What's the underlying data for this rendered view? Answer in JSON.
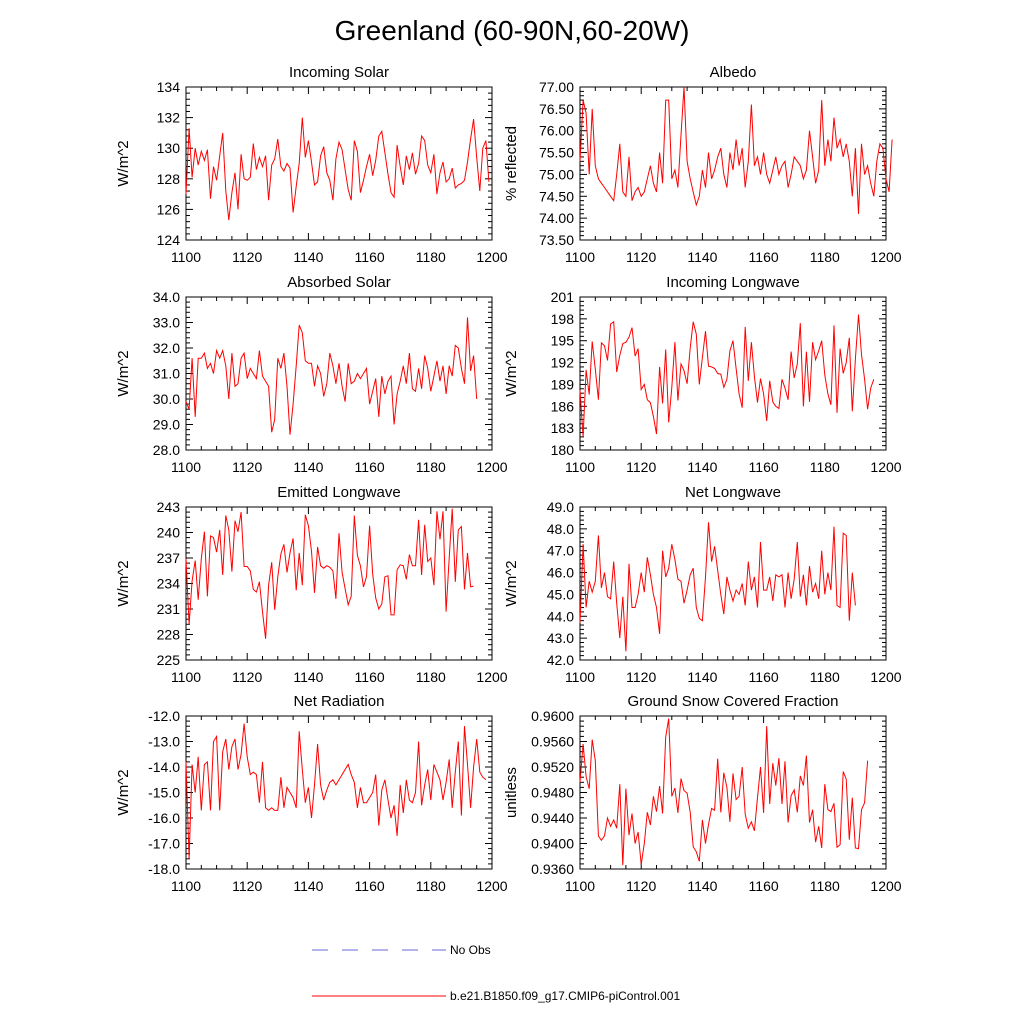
{
  "title": "Greenland (60-90N,60-20W)",
  "legend": {
    "obs_label": "No Obs",
    "obs_color": "#6a6ad8",
    "model_label": "b.e21.B1850.f09_g17.CMIP6-piControl.001",
    "model_color": "#ff0000"
  },
  "x_ticks": [
    "1100",
    "1120",
    "1140",
    "1160",
    "1180",
    "1200"
  ],
  "chart_data": [
    {
      "type": "line",
      "title": "Incoming Solar",
      "ylabel": "W/m^2",
      "xlim": [
        1100,
        1200
      ],
      "ylim": [
        124,
        134
      ],
      "yticks": [
        124,
        126,
        128,
        130,
        132,
        134
      ],
      "ytick_labels": [
        "124",
        "126",
        "128",
        "130",
        "132",
        "134"
      ],
      "x_start": 1100,
      "x_step": 1,
      "values": [
        127.0,
        131.3,
        128.1,
        130.0,
        128.9,
        129.8,
        129.2,
        129.9,
        126.7,
        128.8,
        127.9,
        129.5,
        131.0,
        127.2,
        125.3,
        127.1,
        128.4,
        126.0,
        129.6,
        128.0,
        127.9,
        128.1,
        130.3,
        128.6,
        129.4,
        128.8,
        129.5,
        126.6,
        128.9,
        129.3,
        130.6,
        128.8,
        128.5,
        129.0,
        128.7,
        125.8,
        127.5,
        129.0,
        132.0,
        129.4,
        130.5,
        129.1,
        127.6,
        127.8,
        129.5,
        130.1,
        128.4,
        127.9,
        126.6,
        129.3,
        130.4,
        129.9,
        128.6,
        127.3,
        126.6,
        130.5,
        129.8,
        127.1,
        127.9,
        128.8,
        129.6,
        128.2,
        129.2,
        130.8,
        131.1,
        129.7,
        128.3,
        127.1,
        126.8,
        130.2,
        128.8,
        127.6,
        129.5,
        128.6,
        129.7,
        128.3,
        129.0,
        130.8,
        130.5,
        128.9,
        128.4,
        129.6,
        127.0,
        128.4,
        129.1,
        127.8,
        128.0,
        128.7,
        127.4,
        127.6,
        127.7,
        127.9,
        129.1,
        130.6,
        131.9,
        129.4,
        127.2,
        130.0,
        130.5,
        127.8
      ]
    },
    {
      "type": "line",
      "title": "Albedo",
      "ylabel": "% reflected",
      "xlim": [
        1100,
        1200
      ],
      "ylim": [
        73.5,
        77.0
      ],
      "yticks": [
        73.5,
        74.0,
        74.5,
        75.0,
        75.5,
        76.0,
        76.5,
        77.0
      ],
      "ytick_labels": [
        "73.50",
        "74.00",
        "74.50",
        "75.00",
        "75.50",
        "76.00",
        "76.50",
        "77.00"
      ],
      "x_start": 1100,
      "x_step": 1,
      "values": [
        75.3,
        76.7,
        76.4,
        75.0,
        76.5,
        75.2,
        74.9,
        74.8,
        74.7,
        74.6,
        74.5,
        74.4,
        75.0,
        75.7,
        74.6,
        74.5,
        75.4,
        74.4,
        74.6,
        74.7,
        74.5,
        74.6,
        74.9,
        75.2,
        74.8,
        74.6,
        75.5,
        74.8,
        76.7,
        76.7,
        74.9,
        75.1,
        74.7,
        75.9,
        77.0,
        75.3,
        74.9,
        74.6,
        74.3,
        74.5,
        75.1,
        74.7,
        75.5,
        74.9,
        75.1,
        75.4,
        75.6,
        75.0,
        74.7,
        75.5,
        75.1,
        75.8,
        75.2,
        75.6,
        74.7,
        75.3,
        76.6,
        75.2,
        75.4,
        75.0,
        75.5,
        75.0,
        74.8,
        75.1,
        75.4,
        75.0,
        75.2,
        75.3,
        74.7,
        75.0,
        75.4,
        75.3,
        75.2,
        74.9,
        75.1,
        76.0,
        75.4,
        74.8,
        75.1,
        76.7,
        75.2,
        75.8,
        75.3,
        76.3,
        75.6,
        75.8,
        75.4,
        75.7,
        75.3,
        74.5,
        75.6,
        74.1,
        75.7,
        75.0,
        75.2,
        74.8,
        74.5,
        75.3,
        75.7,
        75.6,
        74.9,
        74.6,
        75.8
      ]
    },
    {
      "type": "line",
      "title": "Absorbed Solar",
      "ylabel": "W/m^2",
      "xlim": [
        1100,
        1200
      ],
      "ylim": [
        28.0,
        34.0
      ],
      "yticks": [
        28.0,
        29.0,
        30.0,
        31.0,
        32.0,
        33.0,
        34.0
      ],
      "ytick_labels": [
        "28.0",
        "29.0",
        "30.0",
        "31.0",
        "32.0",
        "33.0",
        "34.0"
      ],
      "x_start": 1100,
      "x_step": 1,
      "values": [
        29.9,
        29.6,
        31.6,
        29.3,
        31.6,
        31.6,
        31.8,
        31.2,
        31.4,
        31.0,
        31.9,
        31.6,
        31.9,
        31.3,
        30.0,
        31.8,
        30.5,
        30.6,
        31.6,
        31.8,
        30.8,
        31.2,
        31.0,
        30.8,
        31.9,
        30.9,
        30.7,
        30.5,
        28.7,
        29.2,
        31.6,
        31.2,
        31.8,
        30.5,
        28.6,
        29.8,
        31.3,
        32.9,
        32.6,
        31.5,
        31.4,
        31.4,
        30.5,
        31.3,
        31.0,
        30.1,
        30.6,
        31.8,
        31.3,
        30.6,
        31.4,
        30.5,
        29.9,
        31.4,
        30.6,
        30.7,
        31.0,
        30.8,
        31.0,
        31.2,
        29.8,
        30.3,
        30.8,
        29.3,
        30.9,
        30.2,
        30.7,
        30.9,
        29.0,
        30.2,
        30.7,
        31.3,
        30.6,
        31.8,
        30.4,
        30.3,
        31.2,
        30.4,
        31.7,
        31.2,
        30.3,
        30.9,
        31.5,
        30.7,
        31.3,
        30.2,
        31.3,
        30.9,
        32.1,
        32.0,
        31.2,
        30.6,
        33.2,
        31.1,
        31.7,
        30.0
      ]
    },
    {
      "type": "line",
      "title": "Incoming Longwave",
      "ylabel": "W/m^2",
      "xlim": [
        1100,
        1200
      ],
      "ylim": [
        180,
        201
      ],
      "yticks": [
        180,
        183,
        186,
        189,
        192,
        195,
        198,
        201
      ],
      "ytick_labels": [
        "180",
        "183",
        "186",
        "189",
        "192",
        "195",
        "198",
        "201"
      ],
      "x_start": 1100,
      "x_step": 1,
      "values": [
        188.2,
        181.8,
        191.0,
        187.6,
        194.9,
        191.1,
        186.9,
        194.7,
        194.3,
        192.3,
        197.3,
        197.6,
        190.7,
        193.0,
        194.6,
        194.8,
        195.5,
        196.8,
        192.9,
        193.9,
        188.3,
        189.0,
        186.9,
        186.5,
        184.6,
        182.2,
        191.4,
        186.4,
        193.8,
        183.8,
        188.6,
        194.8,
        186.8,
        191.8,
        190.9,
        189.1,
        194.0,
        197.6,
        195.9,
        189.0,
        192.7,
        196.3,
        191.5,
        191.4,
        191.2,
        190.5,
        190.4,
        188.6,
        189.7,
        193.6,
        195.0,
        191.2,
        187.7,
        185.8,
        196.9,
        189.5,
        194.8,
        190.1,
        186.5,
        189.8,
        187.7,
        184.0,
        189.5,
        186.6,
        186.0,
        185.7,
        189.7,
        188.5,
        186.9,
        193.5,
        189.9,
        191.8,
        197.4,
        186.0,
        193.5,
        186.6,
        194.8,
        192.4,
        193.6,
        195.0,
        190.3,
        187.7,
        186.2,
        197.1,
        185.1,
        193.9,
        190.5,
        192.0,
        195.4,
        185.3,
        192.5,
        198.6,
        193.1,
        189.7,
        185.6,
        188.5,
        189.7
      ]
    },
    {
      "type": "line",
      "title": "Emitted Longwave",
      "ylabel": "W/m^2",
      "xlim": [
        1100,
        1200
      ],
      "ylim": [
        225,
        243
      ],
      "yticks": [
        225,
        228,
        231,
        234,
        237,
        240,
        243
      ],
      "ytick_labels": [
        "225",
        "228",
        "231",
        "234",
        "237",
        "240",
        "243"
      ],
      "x_start": 1100,
      "x_step": 1,
      "values": [
        236.9,
        229.2,
        234.3,
        236.7,
        232.1,
        236.9,
        240.1,
        232.5,
        239.6,
        239.4,
        237.7,
        240.3,
        235.0,
        242.0,
        240.3,
        235.4,
        241.4,
        240.1,
        242.4,
        236.0,
        236.0,
        235.5,
        233.3,
        233.0,
        234.2,
        230.7,
        227.5,
        233.8,
        236.5,
        230.9,
        234.8,
        237.5,
        238.6,
        235.3,
        237.6,
        239.3,
        233.2,
        237.6,
        233.8,
        242.1,
        240.8,
        237.8,
        232.9,
        238.3,
        236.1,
        235.8,
        236.1,
        235.9,
        235.5,
        232.2,
        239.9,
        235.3,
        233.4,
        231.5,
        232.5,
        242.0,
        237.3,
        236.1,
        233.6,
        234.8,
        240.8,
        235.1,
        232.3,
        231.0,
        231.6,
        234.8,
        234.9,
        230.3,
        230.3,
        235.6,
        236.2,
        236.1,
        234.5,
        237.4,
        236.1,
        236.1,
        241.5,
        235.0,
        240.9,
        236.6,
        237.0,
        233.8,
        242.5,
        239.2,
        242.5,
        230.7,
        237.0,
        242.8,
        234.2,
        240.3,
        240.7,
        233.3,
        237.6,
        233.6,
        233.7
      ]
    },
    {
      "type": "line",
      "title": "Net Longwave",
      "ylabel": "W/m^2",
      "xlim": [
        1100,
        1200
      ],
      "ylim": [
        42.0,
        49.0
      ],
      "yticks": [
        42.0,
        43.0,
        44.0,
        45.0,
        46.0,
        47.0,
        48.0,
        49.0
      ],
      "ytick_labels": [
        "42.0",
        "43.0",
        "44.0",
        "45.0",
        "46.0",
        "47.0",
        "48.0",
        "49.0"
      ],
      "x_start": 1100,
      "x_step": 1,
      "values": [
        43.7,
        47.3,
        44.4,
        45.6,
        45.1,
        45.6,
        47.7,
        45.3,
        46.0,
        44.9,
        44.8,
        46.5,
        44.6,
        43.0,
        44.9,
        42.4,
        46.4,
        44.4,
        44.4,
        45.0,
        46.0,
        45.1,
        46.7,
        45.9,
        45.0,
        44.4,
        43.2,
        47.0,
        45.8,
        46.2,
        47.3,
        46.6,
        45.7,
        45.6,
        44.6,
        45.2,
        45.9,
        46.2,
        44.4,
        43.9,
        43.8,
        45.8,
        48.3,
        46.5,
        47.2,
        46.1,
        45.0,
        44.1,
        45.8,
        45.2,
        44.7,
        45.2,
        45.0,
        45.5,
        44.5,
        46.5,
        45.2,
        45.8,
        44.4,
        47.4,
        45.2,
        45.2,
        45.8,
        44.7,
        45.9,
        45.8,
        45.9,
        44.4,
        46.0,
        44.8,
        45.7,
        47.4,
        44.9,
        45.9,
        44.5,
        46.3,
        45.1,
        45.5,
        44.8,
        47.0,
        45.0,
        46.0,
        45.2,
        48.1,
        44.5,
        44.4,
        47.8,
        47.7,
        43.8,
        46.0,
        44.5
      ]
    },
    {
      "type": "line",
      "title": "Net Radiation",
      "ylabel": "W/m^2",
      "xlim": [
        1100,
        1200
      ],
      "ylim": [
        -18.0,
        -12.0
      ],
      "yticks": [
        -18.0,
        -17.0,
        -16.0,
        -15.0,
        -14.0,
        -13.0,
        -12.0
      ],
      "ytick_labels": [
        "-18.0",
        "-17.0",
        "-16.0",
        "-15.0",
        "-14.0",
        "-13.0",
        "-12.0"
      ],
      "x_start": 1100,
      "x_step": 1,
      "values": [
        -13.8,
        -17.6,
        -13.9,
        -15.0,
        -13.6,
        -15.7,
        -13.9,
        -13.8,
        -15.7,
        -13.0,
        -12.8,
        -15.7,
        -13.4,
        -12.9,
        -14.1,
        -13.2,
        -12.9,
        -14.1,
        -13.5,
        -12.3,
        -13.6,
        -14.3,
        -14.2,
        -14.3,
        -15.4,
        -13.8,
        -15.6,
        -15.7,
        -15.6,
        -15.7,
        -15.7,
        -14.4,
        -15.6,
        -14.8,
        -15.0,
        -15.2,
        -15.6,
        -12.6,
        -14.1,
        -15.4,
        -14.8,
        -16.0,
        -14.7,
        -13.1,
        -14.7,
        -15.3,
        -14.9,
        -14.6,
        -14.5,
        -14.7,
        -14.5,
        -14.3,
        -14.1,
        -13.9,
        -14.3,
        -14.6,
        -15.6,
        -14.8,
        -15.4,
        -15.4,
        -15.2,
        -15.0,
        -14.3,
        -16.3,
        -14.9,
        -14.5,
        -15.3,
        -16.0,
        -15.5,
        -16.7,
        -14.7,
        -15.8,
        -14.5,
        -15.3,
        -15.4,
        -15.0,
        -13.0,
        -15.5,
        -14.7,
        -14.1,
        -15.3,
        -13.9,
        -14.2,
        -14.5,
        -15.3,
        -14.6,
        -13.7,
        -15.6,
        -14.2,
        -13.0,
        -15.9,
        -12.4,
        -13.9,
        -15.6,
        -14.0,
        -12.9,
        -14.2,
        -14.4,
        -14.5
      ]
    },
    {
      "type": "line",
      "title": "Ground Snow Covered Fraction",
      "ylabel": "unitless",
      "xlim": [
        1100,
        1200
      ],
      "ylim": [
        0.936,
        0.96
      ],
      "yticks": [
        0.936,
        0.94,
        0.944,
        0.948,
        0.952,
        0.956,
        0.96
      ],
      "ytick_labels": [
        "0.9360",
        "0.9400",
        "0.9440",
        "0.9480",
        "0.9520",
        "0.9560",
        "0.9600"
      ],
      "x_start": 1100,
      "x_step": 1,
      "values": [
        0.9496,
        0.9556,
        0.9505,
        0.9486,
        0.9563,
        0.953,
        0.9412,
        0.9405,
        0.9412,
        0.944,
        0.9427,
        0.9437,
        0.9424,
        0.9493,
        0.9366,
        0.9486,
        0.9413,
        0.9447,
        0.94,
        0.9418,
        0.9367,
        0.94,
        0.9449,
        0.9429,
        0.9474,
        0.945,
        0.949,
        0.9447,
        0.9567,
        0.9596,
        0.9474,
        0.9487,
        0.9448,
        0.9502,
        0.9483,
        0.9479,
        0.9449,
        0.9395,
        0.9387,
        0.9372,
        0.9437,
        0.94,
        0.943,
        0.9455,
        0.9452,
        0.9533,
        0.9449,
        0.9511,
        0.9488,
        0.9434,
        0.951,
        0.9469,
        0.9474,
        0.952,
        0.9446,
        0.9424,
        0.9434,
        0.942,
        0.9472,
        0.952,
        0.9448,
        0.9584,
        0.9462,
        0.9526,
        0.9491,
        0.9534,
        0.9462,
        0.9529,
        0.9433,
        0.9475,
        0.9484,
        0.9449,
        0.9506,
        0.9491,
        0.9538,
        0.9433,
        0.9453,
        0.9402,
        0.9427,
        0.9393,
        0.9493,
        0.9453,
        0.945,
        0.9463,
        0.9394,
        0.9398,
        0.9513,
        0.9501,
        0.9406,
        0.9472,
        0.9393,
        0.9392,
        0.9453,
        0.9464,
        0.953
      ]
    }
  ]
}
